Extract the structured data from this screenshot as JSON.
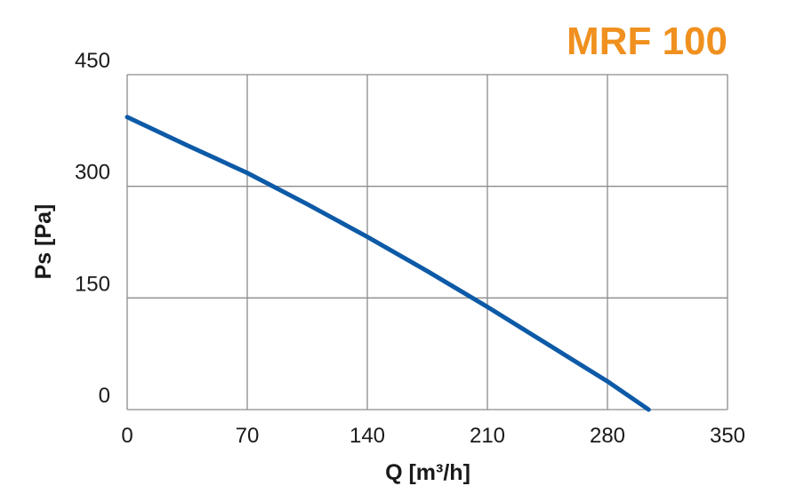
{
  "chart_data": {
    "type": "line",
    "title": "MRF 100",
    "xlabel": "Q [m³/h]",
    "ylabel": "Ps [Pa]",
    "xlim": [
      0,
      350
    ],
    "ylim": [
      0,
      450
    ],
    "x_ticks": [
      "0",
      "70",
      "140",
      "210",
      "280",
      "350"
    ],
    "y_ticks": [
      "0",
      "150",
      "300",
      "450"
    ],
    "grid": true,
    "series": [
      {
        "x": [
          0,
          35,
          70,
          105,
          140,
          175,
          210,
          245,
          280,
          304
        ],
        "values": [
          393,
          355,
          318,
          276,
          232,
          186,
          138,
          88,
          38,
          0
        ]
      }
    ]
  },
  "colors": {
    "line": "#0d5aa7",
    "title": "#f0901e",
    "grid": "#8c8c8c",
    "frame": "#8c8c8c"
  }
}
